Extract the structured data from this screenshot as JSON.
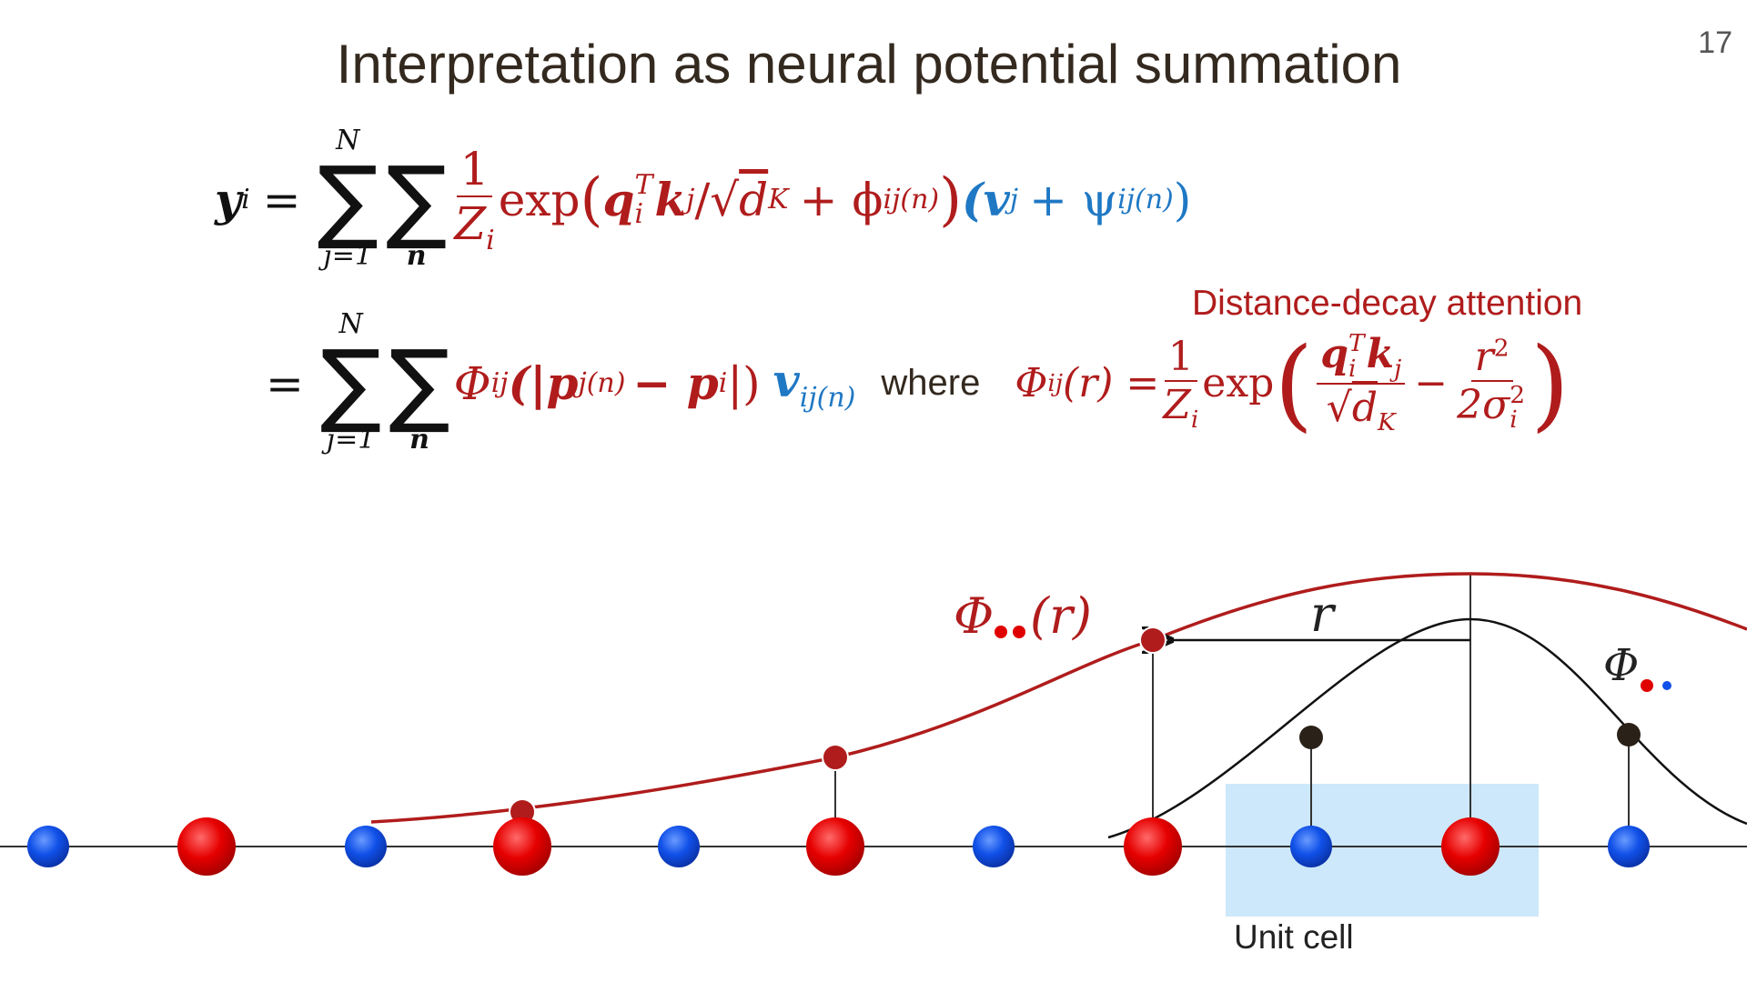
{
  "slide": {
    "title": "Interpretation as neural potential summation",
    "page_number": "17",
    "annotation": "Distance-decay attention",
    "unit_cell_label": "Unit cell"
  },
  "equation": {
    "sum": "∑",
    "line1": {
      "lhs": "y",
      "lhs_sub": "i",
      "eq": "=",
      "sum_upper": "N",
      "sum_lower": "j=1",
      "sum2_lower": "n",
      "frac_num": "1",
      "frac_den": "Z",
      "frac_den_sub": "i",
      "exp": "exp",
      "open": "(",
      "q": "q",
      "q_sup": "T",
      "q_sub": "i",
      "k": "k",
      "k_sub": "j",
      "slash_sqrt": "/√",
      "d": "d",
      "d_sub": "K",
      "plus_phi": "+ ϕ",
      "phi_sub": "ij(n)",
      "close": ")",
      "blue_open": "(v",
      "v_sub": "j",
      "plus_psi": "+ ψ",
      "psi_sub": "ij(n)",
      "blue_close": ")"
    },
    "line2": {
      "eq": "=",
      "sum_upper": "N",
      "sum_lower": "j=1",
      "sum2_lower": "n",
      "Phi": "Φ",
      "Phi_sub": "ij",
      "abs_open": "(|p",
      "p1_sub": "j(n)",
      "minus_p": "− p",
      "p2_sub": "i",
      "abs_close": "|)",
      "v": "v",
      "v_sub": "ij(n)",
      "where": "where",
      "def_Phi": "Φ",
      "def_Phi_sub": "ij",
      "def_arg": "(r) =",
      "frac_num": "1",
      "frac_den": "Z",
      "frac_den_sub": "i",
      "exp": "exp",
      "big_open": "(",
      "q": "q",
      "q_sup": "T",
      "q_sub": "i",
      "k": "k",
      "k_sub": "j",
      "sqrt": "√",
      "d": "d",
      "d_sub": "K",
      "minus": "−",
      "r": "r",
      "r_sup": "2",
      "two_sigma": "2σ",
      "sigma_sup": "2",
      "sigma_sub": "i",
      "big_close": ")"
    }
  },
  "diagram": {
    "curve_label": "Φ",
    "curve_label_arg": "(r)",
    "distance_label": "r",
    "kernel_label": "Φ"
  }
}
